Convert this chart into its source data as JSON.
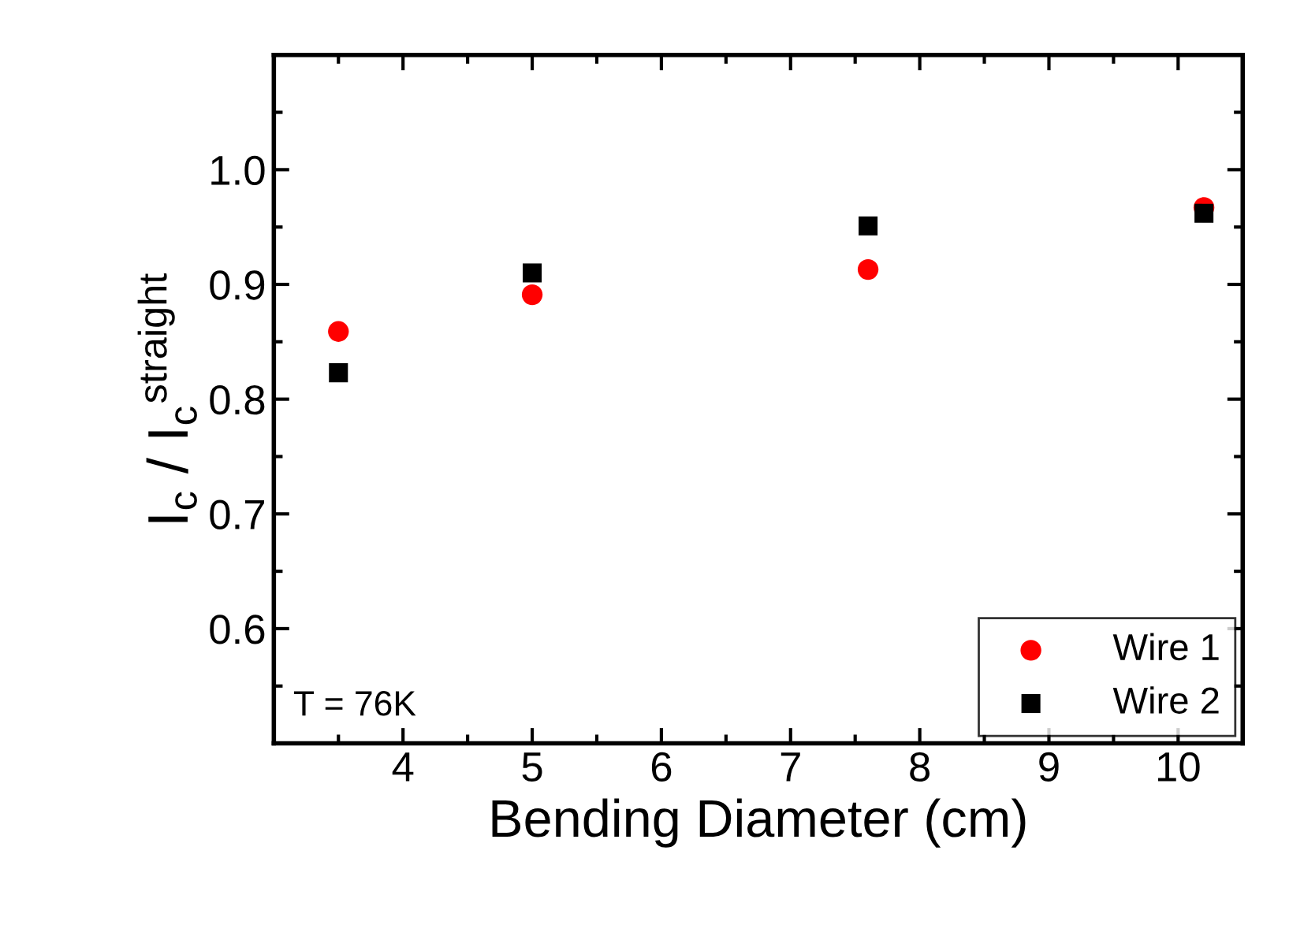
{
  "chart_data": {
    "type": "scatter",
    "xlabel": "Bending Diameter (cm)",
    "ylabel": "I$_{c}$ / I$_{c}$$^{straight}$",
    "xlim": [
      3,
      10.5
    ],
    "xticks": [
      4,
      5,
      6,
      7,
      8,
      9,
      10
    ],
    "ylim": [
      0.5,
      1.1
    ],
    "yticks": [
      0.6,
      0.7,
      0.8,
      0.9,
      {
        "value": 1.0,
        "label": "1.0"
      }
    ],
    "grid": false,
    "legend": "bottom right",
    "annotations": [
      "T = 76K"
    ],
    "series": [
      {
        "name": "Wire 1",
        "color": "#ff0000",
        "marker": "circle",
        "x": [
          3.5,
          5,
          7.6,
          10.2
        ],
        "values": [
          0.859,
          0.891,
          0.913,
          0.967
        ]
      },
      {
        "name": "Wire 2",
        "color": "#000000",
        "marker": "square",
        "x": [
          3.5,
          5,
          7.6,
          10.2
        ],
        "values": [
          0.823,
          0.91,
          0.951,
          0.962
        ]
      }
    ]
  }
}
